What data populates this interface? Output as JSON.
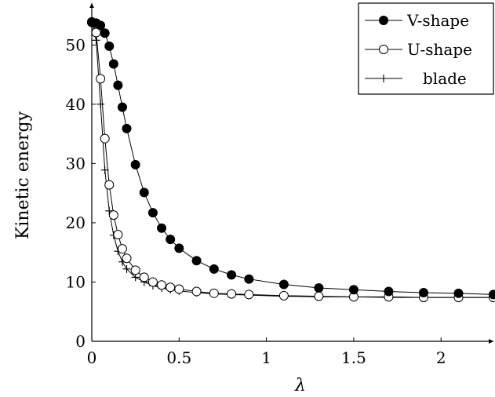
{
  "chart_data": {
    "type": "line",
    "title": "",
    "xlabel": "λ",
    "ylabel": "Kinetic energy",
    "xlim": [
      0,
      2.3
    ],
    "ylim": [
      0,
      56
    ],
    "xticks": [
      0,
      0.5,
      1,
      1.5,
      2
    ],
    "xtick_labels": [
      "0",
      "0.5",
      "1",
      "1.5",
      "2"
    ],
    "yticks": [
      0,
      10,
      20,
      30,
      40,
      50
    ],
    "ytick_labels": [
      "0",
      "10",
      "20",
      "30",
      "40",
      "50"
    ],
    "grid": false,
    "legend_position": "top-right",
    "series": [
      {
        "name": "V-shape",
        "marker": "filled-circle",
        "color": "#000000",
        "x": [
          0,
          0.025,
          0.05,
          0.075,
          0.1,
          0.125,
          0.15,
          0.175,
          0.2,
          0.25,
          0.3,
          0.35,
          0.4,
          0.45,
          0.5,
          0.6,
          0.7,
          0.8,
          0.9,
          1.1,
          1.3,
          1.5,
          1.7,
          1.9,
          2.1,
          2.3
        ],
        "y": [
          53.9,
          53.7,
          53.3,
          52.0,
          49.8,
          46.8,
          43.2,
          39.5,
          35.9,
          29.8,
          25.1,
          21.7,
          19.1,
          17.2,
          15.7,
          13.6,
          12.2,
          11.2,
          10.5,
          9.6,
          9.0,
          8.7,
          8.4,
          8.2,
          8.1,
          7.9
        ]
      },
      {
        "name": "U-shape",
        "marker": "open-circle",
        "color": "#000000",
        "x": [
          0,
          0.025,
          0.05,
          0.075,
          0.1,
          0.125,
          0.15,
          0.175,
          0.2,
          0.25,
          0.3,
          0.35,
          0.4,
          0.45,
          0.5,
          0.6,
          0.7,
          0.8,
          0.9,
          1.1,
          1.3,
          1.5,
          1.7,
          1.9,
          2.1,
          2.3
        ],
        "y": [
          53.8,
          52.1,
          44.3,
          34.2,
          26.4,
          21.3,
          18.0,
          15.6,
          14.0,
          12.0,
          10.8,
          10.0,
          9.5,
          9.1,
          8.8,
          8.4,
          8.1,
          8.0,
          7.9,
          7.7,
          7.6,
          7.5,
          7.5,
          7.4,
          7.4,
          7.4
        ]
      },
      {
        "name": "blade",
        "marker": "plus",
        "color": "#000000",
        "x": [
          0,
          0.025,
          0.05,
          0.075,
          0.1,
          0.125,
          0.15,
          0.175,
          0.2,
          0.25,
          0.3,
          0.35,
          0.4,
          0.45,
          0.5,
          0.6,
          0.7,
          0.8,
          0.9,
          1.1,
          1.3,
          1.5,
          1.7,
          1.9,
          2.1,
          2.3
        ],
        "y": [
          53.7,
          50.8,
          40.0,
          28.9,
          22.0,
          17.9,
          15.2,
          13.4,
          12.2,
          10.8,
          10.0,
          9.4,
          9.0,
          8.7,
          8.5,
          8.2,
          8.0,
          7.9,
          7.8,
          7.6,
          7.5,
          7.5,
          7.4,
          7.4,
          7.4,
          7.4
        ]
      }
    ]
  }
}
